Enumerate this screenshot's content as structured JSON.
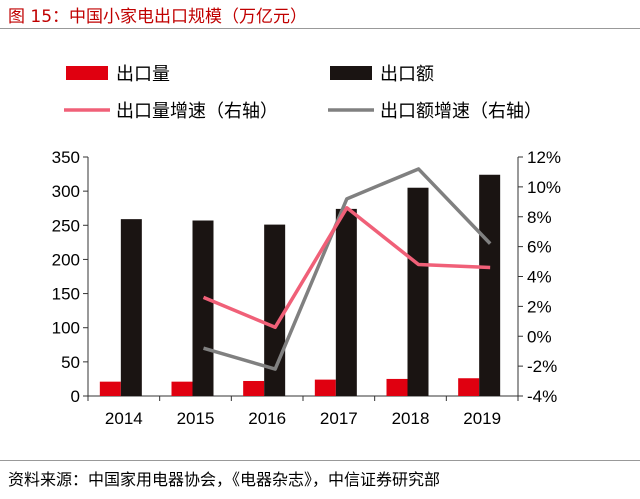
{
  "title": "图 15：中国小家电出口规模（万亿元）",
  "source": "资料来源：中国家用电器协会，《电器杂志》，中信证券研究部",
  "colors": {
    "volume_bar": "#e00010",
    "value_bar": "#1a1412",
    "volume_line": "#f06078",
    "value_line": "#808080"
  },
  "chart_data": {
    "type": "bar",
    "categories": [
      "2014",
      "2015",
      "2016",
      "2017",
      "2018",
      "2019"
    ],
    "series": [
      {
        "name": "出口量",
        "kind": "bar",
        "axis": "left",
        "values": [
          21,
          21,
          22,
          24,
          25,
          26
        ]
      },
      {
        "name": "出口额",
        "kind": "bar",
        "axis": "left",
        "values": [
          259,
          257,
          251,
          274,
          305,
          324
        ]
      },
      {
        "name": "出口量增速（右轴）",
        "kind": "line",
        "axis": "right",
        "values": [
          null,
          2.6,
          0.6,
          8.6,
          4.8,
          4.6
        ]
      },
      {
        "name": "出口额增速（右轴）",
        "kind": "line",
        "axis": "right",
        "values": [
          null,
          -0.8,
          -2.2,
          9.2,
          11.2,
          6.2
        ]
      }
    ],
    "ylim": [
      0,
      350
    ],
    "yticks": [
      "0",
      "50",
      "100",
      "150",
      "200",
      "250",
      "300",
      "350"
    ],
    "y2lim": [
      -4,
      12
    ],
    "y2ticks": [
      "-4%",
      "-2%",
      "0%",
      "2%",
      "4%",
      "6%",
      "8%",
      "10%",
      "12%"
    ],
    "legend_position": "top",
    "grid": false
  }
}
